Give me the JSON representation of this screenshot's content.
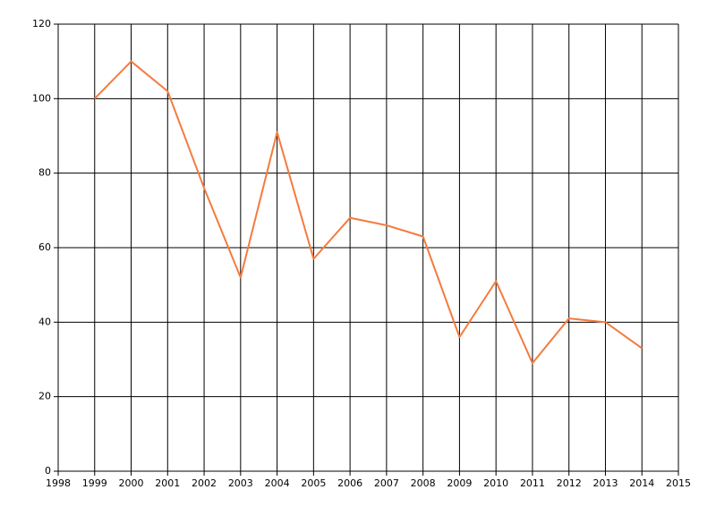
{
  "chart_data": {
    "type": "line",
    "x": [
      1999,
      2000,
      2001,
      2002,
      2003,
      2004,
      2005,
      2006,
      2007,
      2008,
      2009,
      2010,
      2011,
      2012,
      2013,
      2014
    ],
    "values": [
      100,
      110,
      102,
      76,
      52,
      91,
      57,
      68,
      66,
      63,
      36,
      51,
      29,
      41,
      40,
      33
    ],
    "color": "#f47b3e",
    "xlim": [
      1998,
      2015
    ],
    "xticks": [
      1998,
      1999,
      2000,
      2001,
      2002,
      2003,
      2004,
      2005,
      2006,
      2007,
      2008,
      2009,
      2010,
      2011,
      2012,
      2013,
      2014,
      2015
    ],
    "ylim": [
      0,
      120
    ],
    "yticks": [
      0,
      20,
      40,
      60,
      80,
      100,
      120
    ],
    "grid": true
  }
}
